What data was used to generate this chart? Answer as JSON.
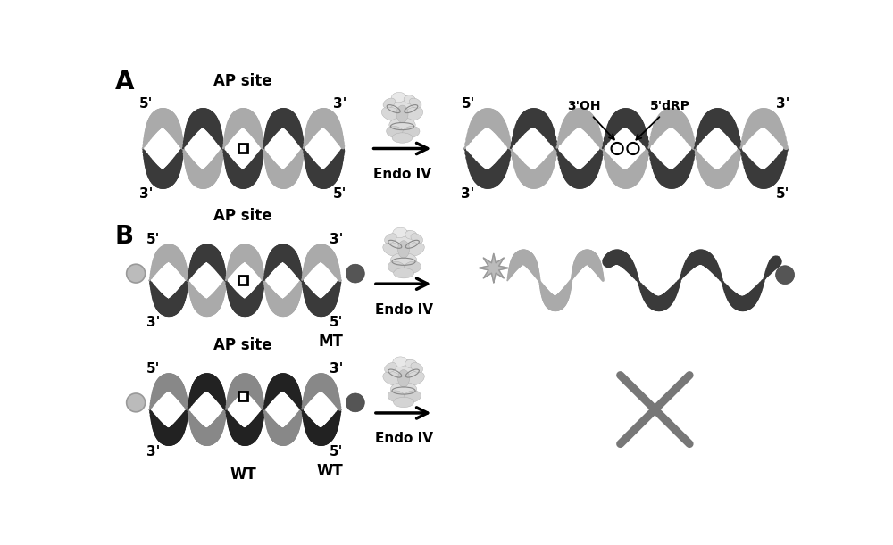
{
  "bg_color": "#ffffff",
  "text_color": "#000000",
  "c_light": "#aaaaaa",
  "c_dark": "#3a3a3a",
  "c_mt_light": "#aaaaaa",
  "c_mt_dark": "#3a3a3a",
  "c_wt_light": "#888888",
  "c_wt_dark": "#222222",
  "panel_A_label": "A",
  "panel_B_label": "B",
  "ap_site_label": "AP site",
  "endo_label": "Endo IV",
  "three_oh_label": "3'OH",
  "five_drp_label": "5'dRP",
  "mt_label": "MT",
  "wt_label": "WT",
  "x_mark_color": "#777777",
  "star_color": "#aaaaaa",
  "ball_light_color": "#bbbbbb",
  "ball_dark_color": "#555555",
  "helix_lw": 18,
  "helix_lw_single": 14
}
